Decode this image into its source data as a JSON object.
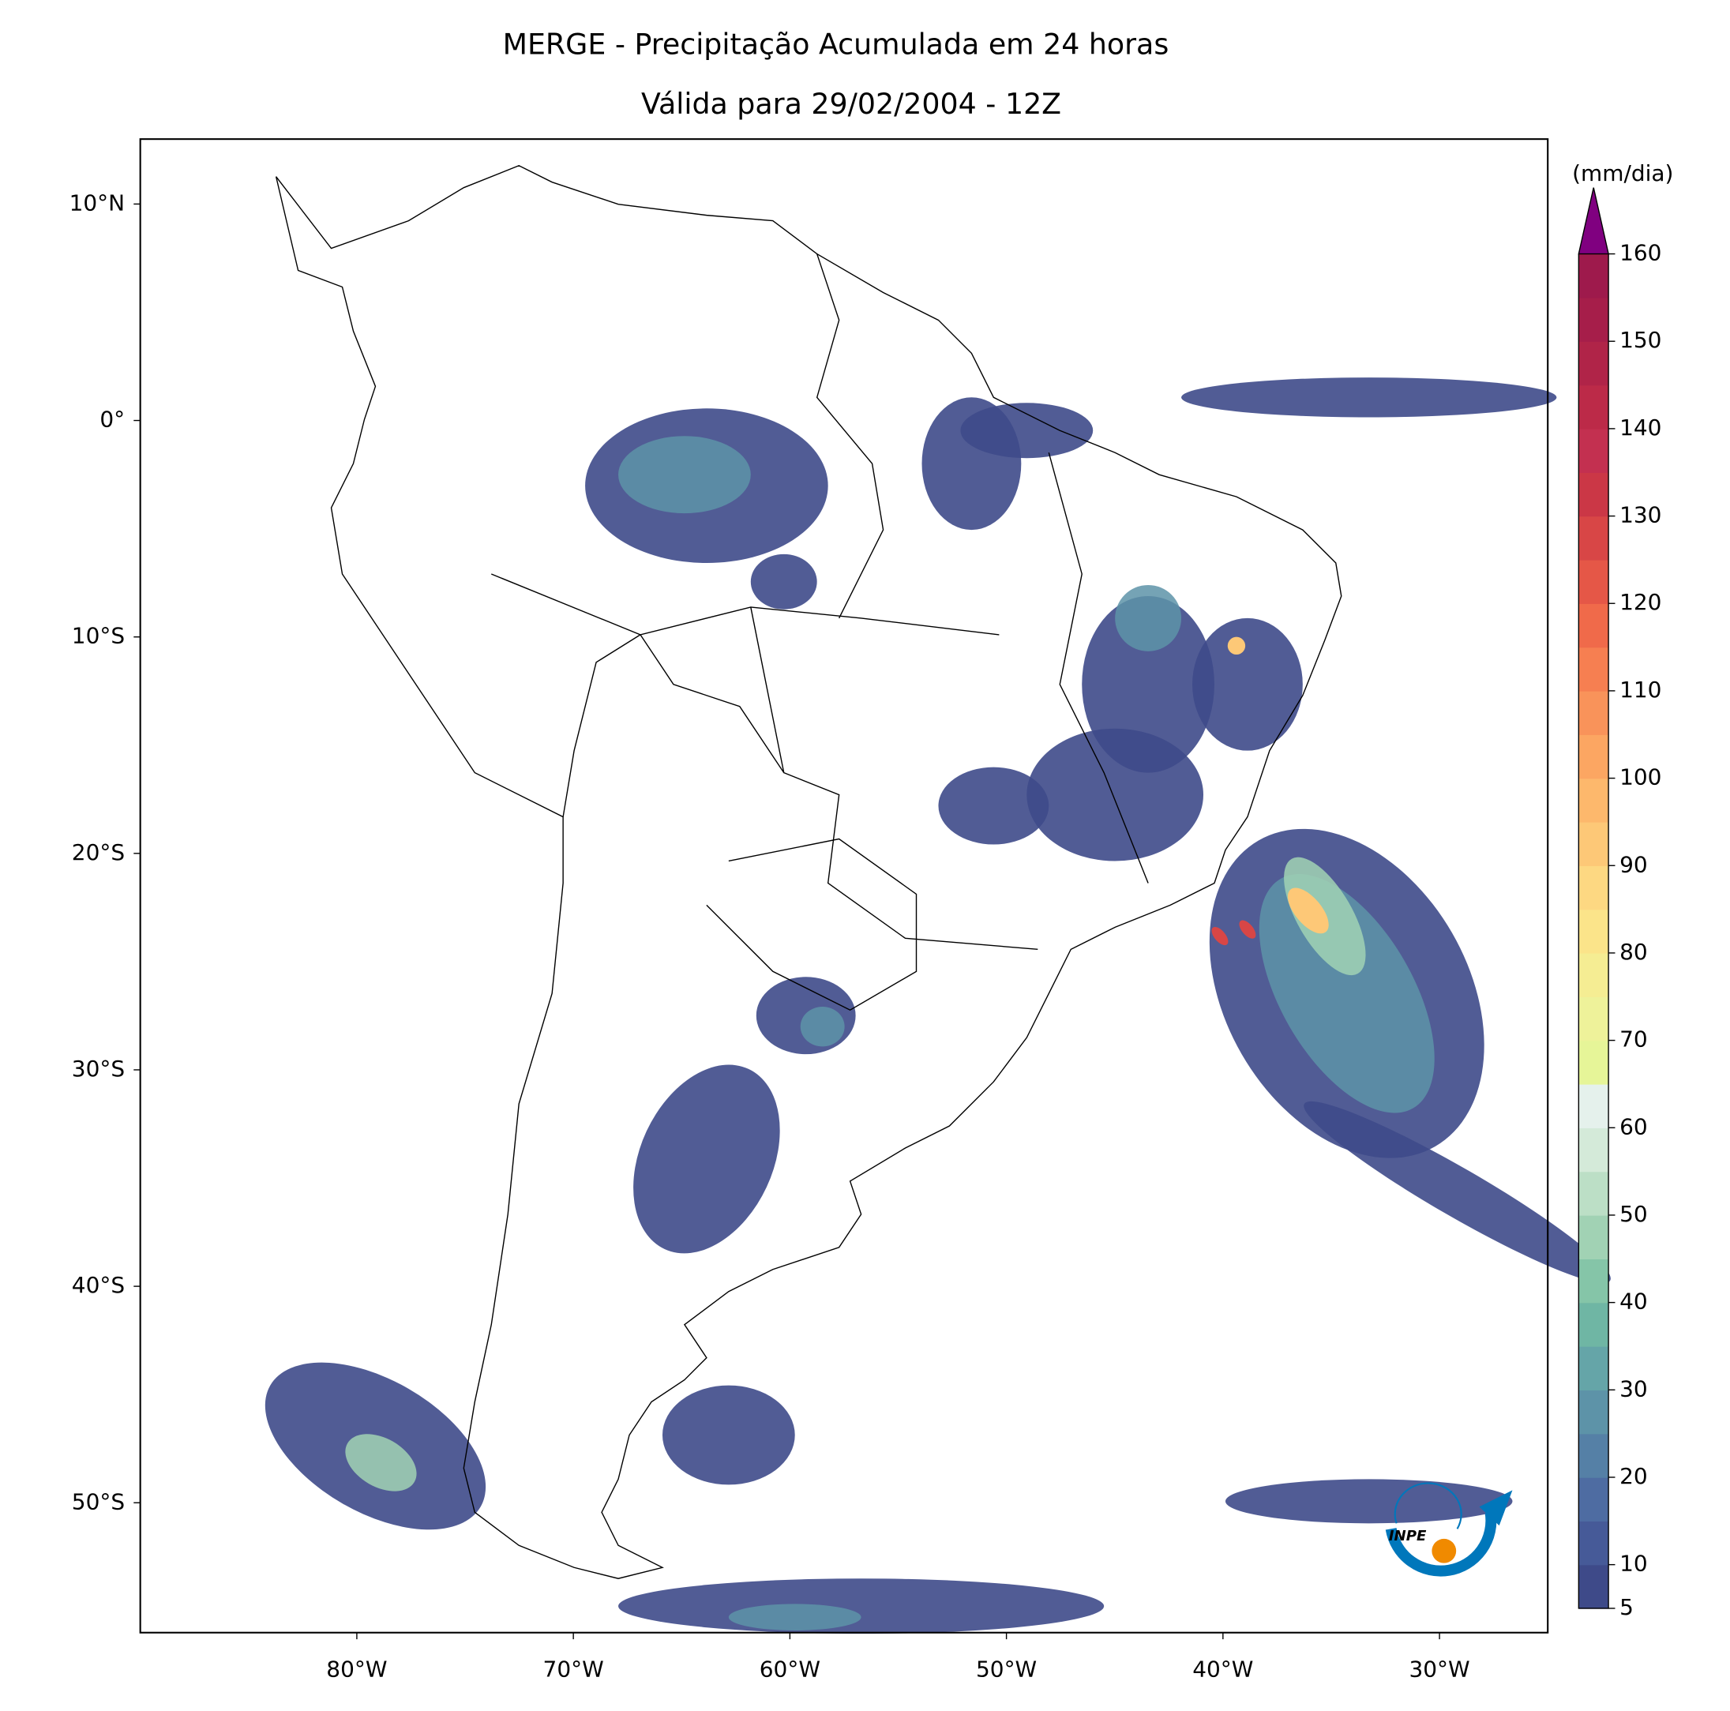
{
  "title": [
    "MERGE - Precipitação Acumulada em 24 horas",
    "Válida para 29/02/2004 - 12Z"
  ],
  "map": {
    "xlim": [
      -90,
      -25
    ],
    "ylim": [
      -56,
      13
    ],
    "xticks": [
      {
        "value": -80,
        "label": "80°W"
      },
      {
        "value": -70,
        "label": "70°W"
      },
      {
        "value": -60,
        "label": "60°W"
      },
      {
        "value": -50,
        "label": "50°W"
      },
      {
        "value": -40,
        "label": "40°W"
      },
      {
        "value": -30,
        "label": "30°W"
      }
    ],
    "yticks": [
      {
        "value": 10,
        "label": "10°N"
      },
      {
        "value": 0,
        "label": "0°"
      },
      {
        "value": -10,
        "label": "10°S"
      },
      {
        "value": -20,
        "label": "20°S"
      },
      {
        "value": -30,
        "label": "30°S"
      },
      {
        "value": -40,
        "label": "40°S"
      },
      {
        "value": -50,
        "label": "50°S"
      }
    ]
  },
  "colorbar": {
    "unit": "(mm/dia)",
    "lim": [
      5,
      160
    ],
    "ticks": [
      5,
      10,
      20,
      30,
      40,
      50,
      60,
      70,
      80,
      90,
      100,
      110,
      120,
      130,
      140,
      150,
      160
    ],
    "colors": [
      "#3e4a89",
      "#465a98",
      "#4e6ca2",
      "#5580a6",
      "#5d93a8",
      "#65a5a8",
      "#6fb6a4",
      "#85c5a8",
      "#a1d2b4",
      "#bcdfc6",
      "#d4ead9",
      "#e5f1ec",
      "#e6f598",
      "#eef29a",
      "#f5ed93",
      "#fbe48a",
      "#fdd882",
      "#fdc877",
      "#fdb86c",
      "#fca662",
      "#f9935a",
      "#f67f51",
      "#f06a4a",
      "#e55747",
      "#d84646",
      "#cb3746",
      "#c33050",
      "#bc2a48",
      "#b02448",
      "#a61e4a",
      "#9e1a4c"
    ],
    "extend_color": "#800080"
  },
  "logo": "INPE"
}
